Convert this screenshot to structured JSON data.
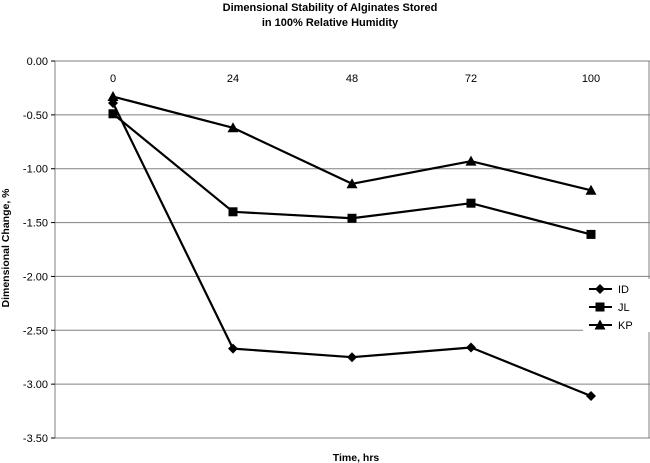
{
  "chart_data": {
    "type": "line",
    "title_lines": [
      "Dimensional Stability of Alginates Stored",
      "in 100% Relative Humidity"
    ],
    "xlabel": "Time, hrs",
    "ylabel": "Dimensional Change, %",
    "categories": [
      "0",
      "24",
      "48",
      "72",
      "100"
    ],
    "ylim": [
      -3.5,
      0
    ],
    "yticks": [
      "0.00",
      "-0.50",
      "-1.00",
      "-1.50",
      "-2.00",
      "-2.50",
      "-3.00",
      "-3.50"
    ],
    "ytick_values": [
      0,
      -0.5,
      -1,
      -1.5,
      -2,
      -2.5,
      -3,
      -3.5
    ],
    "grid": true,
    "x_axis_position": "top",
    "legend_position": "right",
    "series": [
      {
        "name": "ID",
        "marker": "diamond",
        "values": [
          -0.39,
          -2.67,
          -2.75,
          -2.66,
          -3.11
        ]
      },
      {
        "name": "JL",
        "marker": "square",
        "values": [
          -0.49,
          -1.4,
          -1.46,
          -1.32,
          -1.61
        ]
      },
      {
        "name": "KP",
        "marker": "triangle",
        "values": [
          -0.33,
          -0.62,
          -1.14,
          -0.93,
          -1.2
        ]
      }
    ],
    "colors": {
      "line": "#000000",
      "grid": "#808080",
      "background": "#ffffff"
    }
  }
}
